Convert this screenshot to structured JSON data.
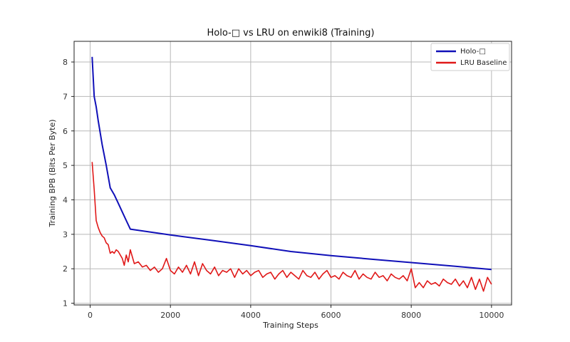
{
  "chart_data": {
    "type": "line",
    "title": "Holo-□ vs LRU on enwiki8 (Training)",
    "xlabel": "Training Steps",
    "ylabel": "Training BPB (Bits Per Byte)",
    "xlim": [
      -400,
      10500
    ],
    "ylim": [
      0.95,
      8.6
    ],
    "x_ticks": [
      0,
      2000,
      4000,
      6000,
      8000,
      10000
    ],
    "y_ticks": [
      1,
      2,
      3,
      4,
      5,
      6,
      7,
      8
    ],
    "grid": true,
    "legend_position": "top-right",
    "series": [
      {
        "name": "Holo-□",
        "color": "#1010b8",
        "x": [
          50,
          100,
          150,
          200,
          300,
          400,
          500,
          600,
          700,
          800,
          900,
          1000,
          2000,
          3000,
          4000,
          5000,
          6000,
          7000,
          8000,
          9000,
          10000
        ],
        "y": [
          8.15,
          7.0,
          6.7,
          6.3,
          5.6,
          5.0,
          4.35,
          4.15,
          3.9,
          3.65,
          3.4,
          3.15,
          2.98,
          2.83,
          2.67,
          2.5,
          2.38,
          2.28,
          2.18,
          2.08,
          1.98
        ]
      },
      {
        "name": "LRU Baseline",
        "color": "#e01818",
        "x": [
          50,
          100,
          150,
          200,
          250,
          300,
          350,
          400,
          450,
          500,
          550,
          600,
          650,
          700,
          750,
          800,
          850,
          900,
          950,
          1000,
          1100,
          1200,
          1300,
          1400,
          1500,
          1600,
          1700,
          1800,
          1900,
          2000,
          2100,
          2200,
          2300,
          2400,
          2500,
          2600,
          2700,
          2800,
          2900,
          3000,
          3100,
          3200,
          3300,
          3400,
          3500,
          3600,
          3700,
          3800,
          3900,
          4000,
          4100,
          4200,
          4300,
          4400,
          4500,
          4600,
          4700,
          4800,
          4900,
          5000,
          5100,
          5200,
          5300,
          5400,
          5500,
          5600,
          5700,
          5800,
          5900,
          6000,
          6100,
          6200,
          6300,
          6400,
          6500,
          6600,
          6700,
          6800,
          6900,
          7000,
          7100,
          7200,
          7300,
          7400,
          7500,
          7600,
          7700,
          7800,
          7900,
          8000,
          8100,
          8200,
          8300,
          8400,
          8500,
          8600,
          8700,
          8800,
          8900,
          9000,
          9100,
          9200,
          9300,
          9400,
          9500,
          9600,
          9700,
          9800,
          9900,
          10000
        ],
        "y": [
          5.1,
          4.3,
          3.4,
          3.2,
          3.05,
          2.95,
          2.9,
          2.75,
          2.7,
          2.45,
          2.5,
          2.45,
          2.55,
          2.5,
          2.4,
          2.3,
          2.1,
          2.4,
          2.2,
          2.55,
          2.15,
          2.2,
          2.05,
          2.1,
          1.95,
          2.05,
          1.9,
          2.0,
          2.3,
          1.95,
          1.85,
          2.05,
          1.9,
          2.1,
          1.85,
          2.2,
          1.8,
          2.15,
          1.95,
          1.85,
          2.05,
          1.8,
          1.95,
          1.9,
          2.0,
          1.75,
          2.0,
          1.85,
          1.95,
          1.8,
          1.9,
          1.95,
          1.75,
          1.85,
          1.9,
          1.7,
          1.85,
          1.95,
          1.75,
          1.9,
          1.8,
          1.7,
          1.95,
          1.8,
          1.75,
          1.9,
          1.7,
          1.85,
          1.95,
          1.75,
          1.8,
          1.7,
          1.9,
          1.8,
          1.75,
          1.95,
          1.7,
          1.85,
          1.75,
          1.7,
          1.9,
          1.75,
          1.8,
          1.65,
          1.85,
          1.75,
          1.7,
          1.8,
          1.65,
          2.0,
          1.45,
          1.6,
          1.45,
          1.65,
          1.55,
          1.6,
          1.5,
          1.7,
          1.6,
          1.55,
          1.7,
          1.5,
          1.65,
          1.45,
          1.75,
          1.4,
          1.7,
          1.35,
          1.75,
          1.55
        ]
      }
    ]
  }
}
